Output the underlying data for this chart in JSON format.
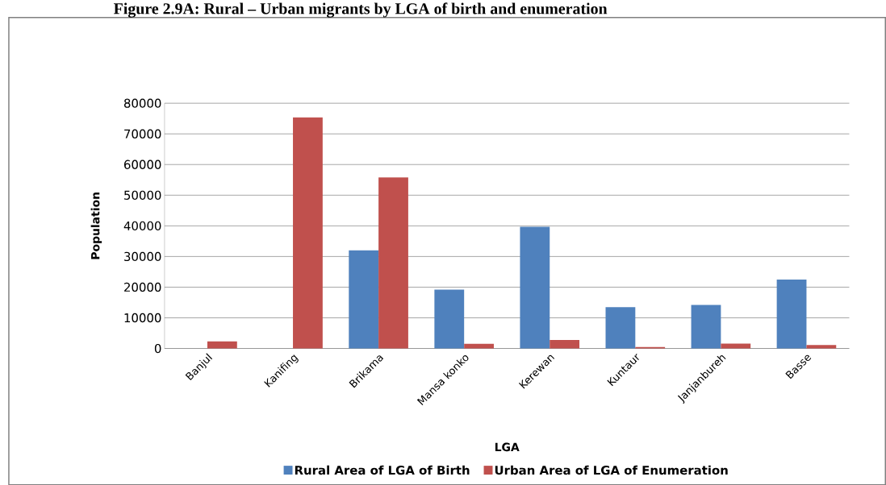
{
  "chart_data": {
    "type": "bar",
    "title": "Figure 2.9A:  Rural – Urban migrants by LGA of birth and enumeration",
    "xlabel": "LGA",
    "ylabel": "Population",
    "categories": [
      "Banjul",
      "Kanifing",
      "Brikama",
      "Mansa konko",
      "Kerewan",
      "Kuntaur",
      "Janjanbureh",
      "Basse"
    ],
    "series": [
      {
        "name": "Rural Area of LGA of Birth",
        "color": "#4f81bd",
        "values": [
          0,
          0,
          32000,
          19200,
          39700,
          13500,
          14200,
          22500
        ]
      },
      {
        "name": "Urban Area of LGA of Enumeration",
        "color": "#c0504d",
        "values": [
          2300,
          75400,
          55800,
          1500,
          2800,
          500,
          1600,
          1100
        ]
      }
    ],
    "ylim": [
      0,
      80000
    ],
    "yticks": [
      0,
      10000,
      20000,
      30000,
      40000,
      50000,
      60000,
      70000,
      80000
    ],
    "grid": "y",
    "legend": "bottom"
  }
}
